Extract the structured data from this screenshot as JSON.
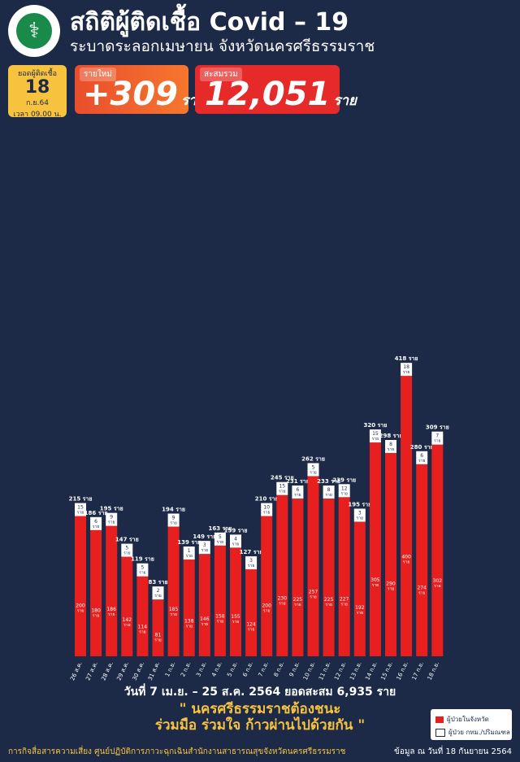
{
  "header": {
    "title": "สถิติผู้ติดเชื้อ Covid – 19",
    "subtitle": "ระบาดระลอกเมษายน จังหวัดนครศรีธรรมราช",
    "logo_icon": "ministry-of-public-health-logo-icon"
  },
  "date_box": {
    "label": "ยอดผู้ติดเชื้อ",
    "day": "18",
    "month": "ก.ย.64",
    "time": "เวลา 09.00 น."
  },
  "new_cases": {
    "label": "รายใหม่",
    "value": "+309",
    "unit": "ราย"
  },
  "total_cases": {
    "label": "สะสมรวม",
    "value": "12,051",
    "unit": "ราย"
  },
  "colors": {
    "background": "#1c2a47",
    "bar_red": "#e81f1f",
    "bar_white": "#ffffff",
    "accent_yellow": "#f7c23d"
  },
  "chart_data": {
    "type": "bar",
    "stacked": true,
    "categories": [
      "26 ส.ค.",
      "27 ส.ค.",
      "28 ส.ค.",
      "29 ส.ค.",
      "30 ส.ค.",
      "31 ส.ค.",
      "1 ก.ย.",
      "2 ก.ย.",
      "3 ก.ย.",
      "4 ก.ย.",
      "5 ก.ย.",
      "6 ก.ย.",
      "7 ก.ย.",
      "8 ก.ย.",
      "9 ก.ย.",
      "10 ก.ย.",
      "11 ก.ย.",
      "12 ก.ย.",
      "13 ก.ย.",
      "14 ก.ย.",
      "15 ก.ย.",
      "16 ก.ย.",
      "17 ก.ย.",
      "18 ก.ย."
    ],
    "totals": [
      215,
      186,
      195,
      147,
      119,
      83,
      194,
      139,
      149,
      163,
      159,
      127,
      210,
      245,
      231,
      262,
      233,
      239,
      195,
      320,
      298,
      418,
      280,
      309
    ],
    "total_labels": [
      "215 ราย",
      "186 ราย",
      "195 ราย",
      "147 ราย",
      "119 ราย",
      "83 ราย",
      "194 ราย",
      "139 ราย",
      "149 ราย",
      "163 ราย",
      "159 ราย",
      "127 ราย",
      "210 ราย",
      "245 ราย",
      "231 ราย",
      "262 ราย",
      "233 ราย",
      "239 ราย",
      "195 ราย",
      "320 ราย",
      "298 ราย",
      "418 ราย",
      "280 ราย",
      "309 ราย"
    ],
    "series": [
      {
        "name": "ผู้ป่วยในจังหวัด",
        "color": "#e81f1f",
        "values": [
          200,
          180,
          186,
          142,
          114,
          81,
          185,
          138,
          146,
          158,
          155,
          124,
          200,
          230,
          225,
          257,
          225,
          227,
          192,
          305,
          290,
          400,
          274,
          302
        ]
      },
      {
        "name": "ผู้ป่วย กทม./ปริมณฑล",
        "color": "#ffffff",
        "values": [
          15,
          6,
          9,
          5,
          5,
          2,
          9,
          1,
          3,
          5,
          4,
          3,
          10,
          15,
          6,
          5,
          8,
          12,
          3,
          15,
          8,
          18,
          6,
          7
        ]
      }
    ],
    "unit_label": "ราย",
    "ylim": [
      0,
      430
    ],
    "grid": false
  },
  "range_text": "วันที่ 7 เม.ย. – 25 ส.ค. 2564 ยอดสะสม 6,935 ราย",
  "slogan": {
    "line1": "\" นครศรีธรรมราชต้องชนะ",
    "line2": "ร่วมมือ ร่วมใจ ก้าวผ่านไปด้วยกัน \""
  },
  "legend": {
    "item1": "ผู้ป่วยในจังหวัด",
    "item2": "ผู้ป่วย กทม./ปริมณฑล"
  },
  "footer": {
    "left": "การกิจสื่อสารความเสี่ยง ศูนย์ปฏิบัติการภาวะฉุกเฉินสำนักงานสาธารณสุขจังหวัดนครศรีธรรมราช",
    "right": "ข้อมูล ณ วันที่ 18 กันยายน 2564"
  }
}
